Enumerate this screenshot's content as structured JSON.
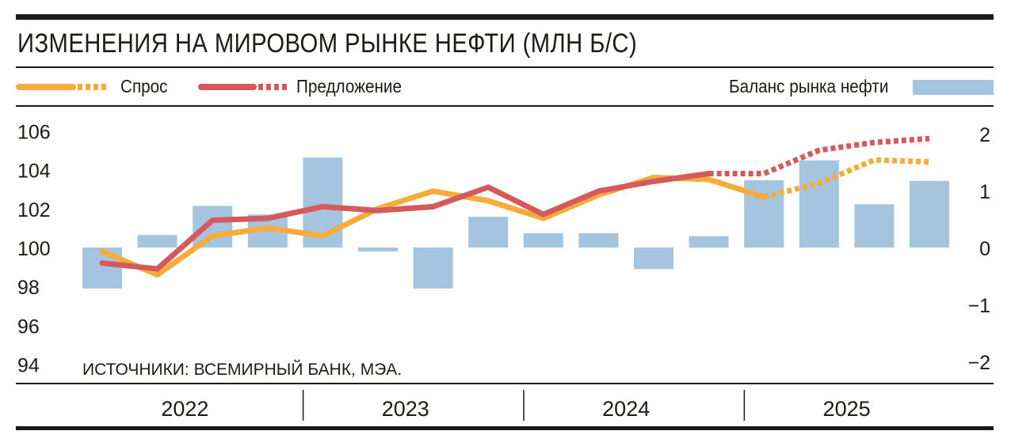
{
  "title": "ИЗМЕНЕНИЯ НА МИРОВОМ РЫНКЕ НЕФТИ (МЛН Б/С)",
  "legend": {
    "demand": "Спрос",
    "supply": "Предложение",
    "balance": "Баланс рынка нефти"
  },
  "source": "ИСТОЧНИКИ: ВСЕМИРНЫЙ БАНК, МЭА.",
  "colors": {
    "demand": "#f6ab3a",
    "supply": "#d55a5c",
    "balance": "#a5c4df",
    "ink": "#1e1a17"
  },
  "chart_data": {
    "type": "bar",
    "title": "ИЗМЕНЕНИЯ НА МИРОВОМ РЫНКЕ НЕФТИ (МЛН Б/С)",
    "years": [
      "2022",
      "2023",
      "2024",
      "2025"
    ],
    "quarters_per_year": 4,
    "left_axis": {
      "ticks": [
        "106",
        "104",
        "102",
        "100",
        "98",
        "96",
        "94"
      ],
      "range": [
        94,
        106
      ]
    },
    "right_axis": {
      "ticks": [
        "2",
        "1",
        "0",
        "−1",
        "−2"
      ],
      "range": [
        -2,
        2
      ]
    },
    "series": [
      {
        "name": "Баланс рынка нефти",
        "type": "bar",
        "axis": "right",
        "values": [
          -0.72,
          0.22,
          0.73,
          0.58,
          1.58,
          -0.07,
          -0.72,
          0.54,
          0.25,
          0.25,
          -0.38,
          0.2,
          1.18,
          1.53,
          0.76,
          1.17
        ]
      },
      {
        "name": "Спрос",
        "type": "line",
        "axis": "left",
        "forecast_from_index": 12,
        "values": [
          99.8,
          98.6,
          100.6,
          101.0,
          100.6,
          102.0,
          102.9,
          102.4,
          101.5,
          102.7,
          103.6,
          103.5,
          102.6,
          103.3,
          104.5,
          104.4
        ]
      },
      {
        "name": "Предложение",
        "type": "line",
        "axis": "left",
        "forecast_from_index": 11,
        "values": [
          99.2,
          98.9,
          101.4,
          101.5,
          102.1,
          101.9,
          102.1,
          103.1,
          101.7,
          102.9,
          103.4,
          103.8,
          103.8,
          105.0,
          105.4,
          105.6
        ]
      }
    ]
  }
}
